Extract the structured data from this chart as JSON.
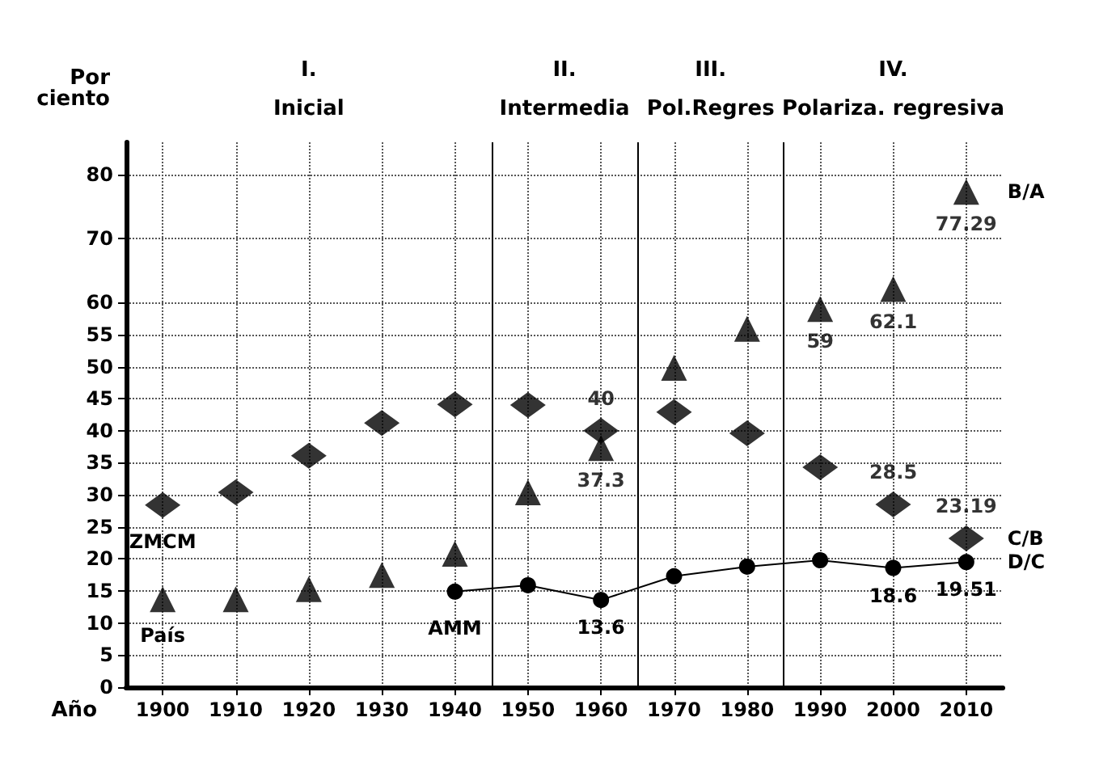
{
  "chart_data": {
    "type": "scatter",
    "ylabel": "Por ciento",
    "xlabel": "Año",
    "x": [
      1900,
      1910,
      1920,
      1930,
      1940,
      1950,
      1960,
      1970,
      1980,
      1990,
      2000,
      2010
    ],
    "series": [
      {
        "name": "B/A",
        "marker": "triangle",
        "color": "#000000",
        "values": [
          13.7,
          13.7,
          15.3,
          17.5,
          20.8,
          30.4,
          37.3,
          49.8,
          55.9,
          59,
          62.1,
          77.29
        ],
        "value_labels": [
          null,
          null,
          null,
          null,
          null,
          null,
          "37.3",
          null,
          null,
          "59",
          "62.1",
          "77.29"
        ]
      },
      {
        "name": "C/B",
        "marker": "diamond",
        "color": "#000000",
        "values": [
          28.4,
          30.4,
          36.1,
          41.2,
          44.1,
          44,
          40,
          42.9,
          39.6,
          34.3,
          28.5,
          23.19
        ],
        "value_labels": [
          null,
          null,
          null,
          null,
          null,
          null,
          "40",
          null,
          null,
          null,
          "28.5",
          "23.19"
        ]
      },
      {
        "name": "D/C",
        "type": "line",
        "marker": "circle",
        "line_style": "solid",
        "color": "#000000",
        "values": [
          null,
          null,
          null,
          null,
          14.9,
          15.9,
          13.6,
          17.3,
          18.8,
          19.8,
          18.6,
          19.51
        ],
        "value_labels": [
          null,
          null,
          null,
          null,
          null,
          null,
          "13.6",
          null,
          null,
          null,
          "18.6",
          "19.51"
        ]
      }
    ],
    "xlim": [
      1895,
      2015
    ],
    "xticks": [
      1900,
      1910,
      1920,
      1930,
      1940,
      1950,
      1960,
      1970,
      1980,
      1990,
      2000,
      2010
    ],
    "ylim": [
      0,
      85
    ],
    "yticks": [
      0,
      5,
      10,
      15,
      20,
      25,
      30,
      35,
      40,
      45,
      50,
      55,
      60,
      70,
      80
    ],
    "ref_lines": [
      {
        "axis": "x",
        "value": 1945
      },
      {
        "axis": "x",
        "value": 1965
      },
      {
        "axis": "x",
        "value": 1985
      }
    ],
    "annotations": [
      "I.\nInicial",
      "II.\nIntermedia",
      "III.\nPol.Regres",
      "IV.\nPolariza. regresiva",
      "País",
      "ZMCM",
      "AMM"
    ],
    "grid": true,
    "legend": false
  }
}
